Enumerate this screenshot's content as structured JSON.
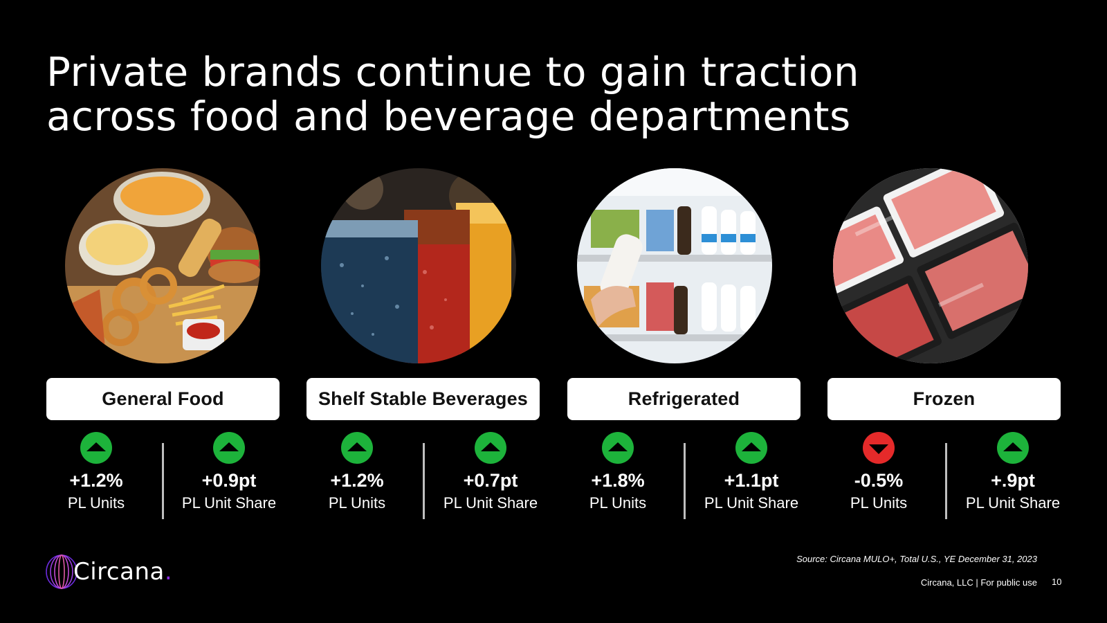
{
  "title": {
    "line1": "Private brands continue to gain traction",
    "line2": "across food and beverage departments"
  },
  "categories": [
    {
      "name": "General Food",
      "image": "fast-food-photo",
      "units": {
        "value": "+1.2%",
        "label": "PL Units",
        "direction": "up"
      },
      "share": {
        "value": "+0.9pt",
        "label": "PL Unit Share",
        "direction": "up"
      }
    },
    {
      "name": "Shelf Stable Beverages",
      "image": "soft-drinks-photo",
      "units": {
        "value": "+1.2%",
        "label": "PL Units",
        "direction": "up"
      },
      "share": {
        "value": "+0.7pt",
        "label": "PL Unit Share",
        "direction": "up"
      }
    },
    {
      "name": "Refrigerated",
      "image": "dairy-shelf-photo",
      "units": {
        "value": "+1.8%",
        "label": "PL Units",
        "direction": "up"
      },
      "share": {
        "value": "+1.1pt",
        "label": "PL Unit Share",
        "direction": "up"
      }
    },
    {
      "name": "Frozen",
      "image": "frozen-meat-photo",
      "units": {
        "value": "-0.5%",
        "label": "PL Units",
        "direction": "down"
      },
      "share": {
        "value": "+.9pt",
        "label": "PL Unit Share",
        "direction": "up"
      }
    }
  ],
  "colors": {
    "background": "#000000",
    "up": "#1db33b",
    "down": "#e52a2a",
    "logo_accent": "#8a2be2"
  },
  "logo": {
    "text": "Circana",
    "dot": "."
  },
  "source": "Source: Circana MULO+, Total U.S., YE December 31, 2023",
  "footer": "Circana, LLC |  For public use",
  "page_number": "10"
}
